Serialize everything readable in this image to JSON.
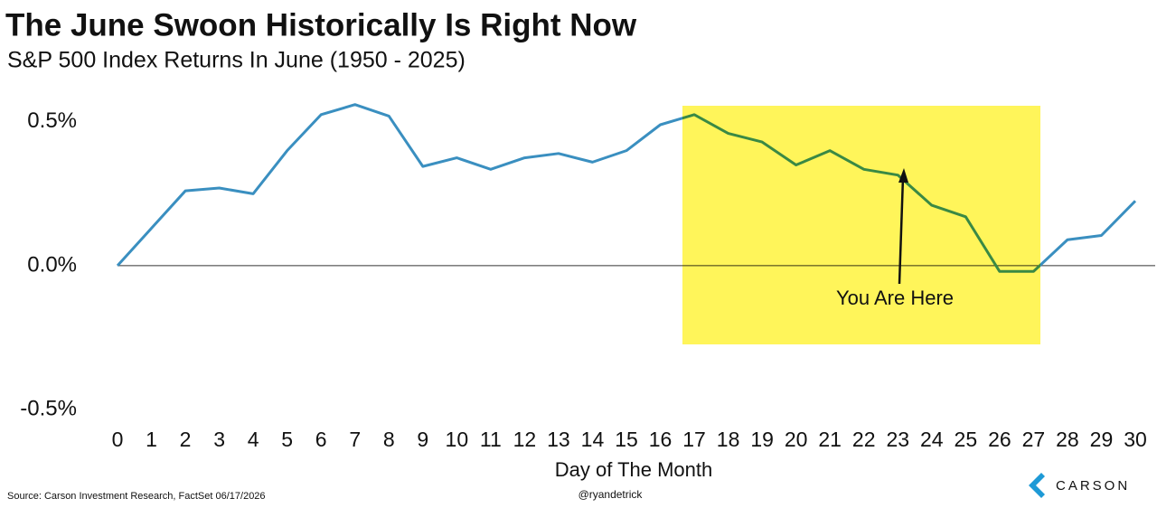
{
  "chart_data": {
    "type": "line",
    "title": "The June Swoon Historically Is Right Now",
    "subtitle": "S&P 500 Index Returns In June (1950 - 2025)",
    "x_label": "Day of The Month",
    "annotation": "You Are Here",
    "source": "Source: Carson Investment Research, FactSet 06/17/2026",
    "credit": "@ryandetrick",
    "logo": "CARSON",
    "x": [
      0,
      1,
      2,
      3,
      4,
      5,
      6,
      7,
      8,
      9,
      10,
      11,
      12,
      13,
      14,
      15,
      16,
      17,
      18,
      19,
      20,
      21,
      22,
      23,
      24,
      25,
      26,
      27,
      28,
      29,
      30
    ],
    "series": [
      {
        "name": "S&P 500 Index Returns In June",
        "color": "#3a8fc0",
        "values": [
          0,
          0.13,
          0.26,
          0.27,
          0.25,
          0.4,
          0.525,
          0.56,
          0.52,
          0.345,
          0.375,
          0.335,
          0.375,
          0.39,
          0.36,
          0.4,
          0.49,
          0.525,
          0.46,
          0.43,
          0.35,
          0.4,
          0.335,
          0.315,
          0.21,
          0.17,
          -0.02,
          -0.02,
          0.09,
          0.105,
          0.225
        ]
      }
    ],
    "xlim": [
      0,
      30
    ],
    "xticks": [
      0,
      1,
      2,
      3,
      4,
      5,
      6,
      7,
      8,
      9,
      10,
      11,
      12,
      13,
      14,
      15,
      16,
      17,
      18,
      19,
      20,
      21,
      22,
      23,
      24,
      25,
      26,
      27,
      28,
      29,
      30
    ],
    "ylim": [
      -0.5,
      0.6
    ],
    "yticks": [
      {
        "value": -0.5,
        "label": "-0.5%"
      },
      {
        "value": 0,
        "label": "0.0%"
      },
      {
        "value": 0.5,
        "label": "0.5%"
      }
    ],
    "grid": false,
    "zero_line": true,
    "highlight_color": "#fff55a"
  }
}
